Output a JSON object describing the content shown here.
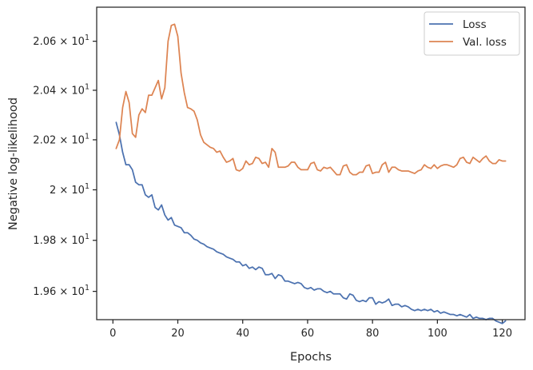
{
  "chart_data": {
    "type": "line",
    "title": "",
    "xlabel": "Epochs",
    "ylabel": "Negative log-likelihood",
    "xlim": [
      -5,
      127
    ],
    "ylim": [
      19.49,
      20.74
    ],
    "yscale": "log",
    "grid": false,
    "legend_position": "top-right",
    "x_ticks": [
      0,
      20,
      40,
      60,
      80,
      100,
      120
    ],
    "x_tick_labels": [
      "0",
      "20",
      "40",
      "60",
      "80",
      "100",
      "120"
    ],
    "y_ticks": [
      19.6,
      19.8,
      20.0,
      20.2,
      20.4,
      20.6
    ],
    "y_tick_labels": [
      {
        "coef": "1.96",
        "base": "10",
        "exp": "1"
      },
      {
        "coef": "1.98",
        "base": "10",
        "exp": "1"
      },
      {
        "coef": "2",
        "base": "10",
        "exp": "1"
      },
      {
        "coef": "2.02",
        "base": "10",
        "exp": "1"
      },
      {
        "coef": "2.04",
        "base": "10",
        "exp": "1"
      },
      {
        "coef": "2.06",
        "base": "10",
        "exp": "1"
      }
    ],
    "x": [
      1,
      2,
      3,
      4,
      5,
      6,
      7,
      8,
      9,
      10,
      11,
      12,
      13,
      14,
      15,
      16,
      17,
      18,
      19,
      20,
      21,
      22,
      23,
      24,
      25,
      26,
      27,
      28,
      29,
      30,
      31,
      32,
      33,
      34,
      35,
      36,
      37,
      38,
      39,
      40,
      41,
      42,
      43,
      44,
      45,
      46,
      47,
      48,
      49,
      50,
      51,
      52,
      53,
      54,
      55,
      56,
      57,
      58,
      59,
      60,
      61,
      62,
      63,
      64,
      65,
      66,
      67,
      68,
      69,
      70,
      71,
      72,
      73,
      74,
      75,
      76,
      77,
      78,
      79,
      80,
      81,
      82,
      83,
      84,
      85,
      86,
      87,
      88,
      89,
      90,
      91,
      92,
      93,
      94,
      95,
      96,
      97,
      98,
      99,
      100,
      101,
      102,
      103,
      104,
      105,
      106,
      107,
      108,
      109,
      110,
      111,
      112,
      113,
      114,
      115,
      116,
      117,
      118,
      119,
      120,
      121
    ],
    "series": [
      {
        "name": "Loss",
        "color": "#4c72b0",
        "values": [
          20.27,
          20.22,
          20.15,
          20.1,
          20.1,
          20.08,
          20.03,
          20.02,
          20.02,
          19.98,
          19.97,
          19.98,
          19.93,
          19.92,
          19.94,
          19.9,
          19.88,
          19.89,
          19.86,
          19.855,
          19.85,
          19.83,
          19.83,
          19.82,
          19.805,
          19.8,
          19.79,
          19.785,
          19.775,
          19.77,
          19.765,
          19.755,
          19.75,
          19.745,
          19.735,
          19.73,
          19.725,
          19.715,
          19.715,
          19.7,
          19.705,
          19.69,
          19.695,
          19.685,
          19.695,
          19.69,
          19.665,
          19.665,
          19.67,
          19.65,
          19.665,
          19.66,
          19.64,
          19.64,
          19.635,
          19.63,
          19.635,
          19.63,
          19.615,
          19.61,
          19.615,
          19.605,
          19.61,
          19.61,
          19.6,
          19.595,
          19.6,
          19.59,
          19.59,
          19.59,
          19.575,
          19.57,
          19.59,
          19.585,
          19.565,
          19.56,
          19.565,
          19.56,
          19.575,
          19.575,
          19.55,
          19.56,
          19.555,
          19.56,
          19.57,
          19.545,
          19.55,
          19.55,
          19.54,
          19.545,
          19.54,
          19.53,
          19.525,
          19.53,
          19.525,
          19.53,
          19.525,
          19.53,
          19.52,
          19.525,
          19.515,
          19.52,
          19.515,
          19.51,
          19.51,
          19.505,
          19.51,
          19.505,
          19.5,
          19.51,
          19.495,
          19.5,
          19.495,
          19.495,
          19.49,
          19.495,
          19.495,
          19.485,
          19.48,
          19.475,
          19.485
        ]
      },
      {
        "name": "Val. loss",
        "color": "#dd8452",
        "values": [
          20.165,
          20.2,
          20.33,
          20.395,
          20.35,
          20.225,
          20.21,
          20.3,
          20.325,
          20.31,
          20.38,
          20.38,
          20.41,
          20.44,
          20.365,
          20.41,
          20.6,
          20.665,
          20.67,
          20.62,
          20.47,
          20.39,
          20.33,
          20.325,
          20.315,
          20.28,
          20.22,
          20.19,
          20.18,
          20.17,
          20.165,
          20.15,
          20.155,
          20.13,
          20.11,
          20.115,
          20.125,
          20.08,
          20.075,
          20.085,
          20.115,
          20.1,
          20.105,
          20.13,
          20.125,
          20.105,
          20.11,
          20.09,
          20.165,
          20.15,
          20.09,
          20.09,
          20.09,
          20.095,
          20.11,
          20.11,
          20.09,
          20.08,
          20.08,
          20.08,
          20.105,
          20.11,
          20.08,
          20.075,
          20.09,
          20.085,
          20.09,
          20.075,
          20.06,
          20.06,
          20.095,
          20.1,
          20.07,
          20.06,
          20.06,
          20.07,
          20.07,
          20.095,
          20.1,
          20.065,
          20.07,
          20.07,
          20.1,
          20.11,
          20.07,
          20.09,
          20.09,
          20.08,
          20.075,
          20.075,
          20.075,
          20.07,
          20.065,
          20.075,
          20.08,
          20.1,
          20.09,
          20.085,
          20.1,
          20.085,
          20.095,
          20.1,
          20.1,
          20.095,
          20.09,
          20.1,
          20.125,
          20.13,
          20.11,
          20.105,
          20.13,
          20.12,
          20.11,
          20.125,
          20.135,
          20.115,
          20.105,
          20.105,
          20.12,
          20.115,
          20.115
        ]
      }
    ]
  }
}
